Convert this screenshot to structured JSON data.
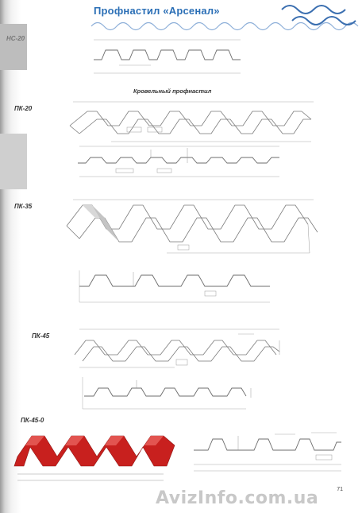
{
  "header": {
    "title": "Профнастил «Арсенал»"
  },
  "section_title": "Кровельный профнастил",
  "profiles": [
    {
      "label": "НС-20"
    },
    {
      "label": "ПК-20"
    },
    {
      "label": "ПК-35"
    },
    {
      "label": "ПК-45"
    },
    {
      "label": "ПК-45-0"
    }
  ],
  "page_number": "71",
  "watermark": "AvizInfo.com.ua",
  "colors": {
    "title_blue": "#2b6fb6",
    "wave_blue": "#3b6fb0",
    "sheet_red": "#c8201e",
    "line_gray": "#8a8a8a"
  }
}
